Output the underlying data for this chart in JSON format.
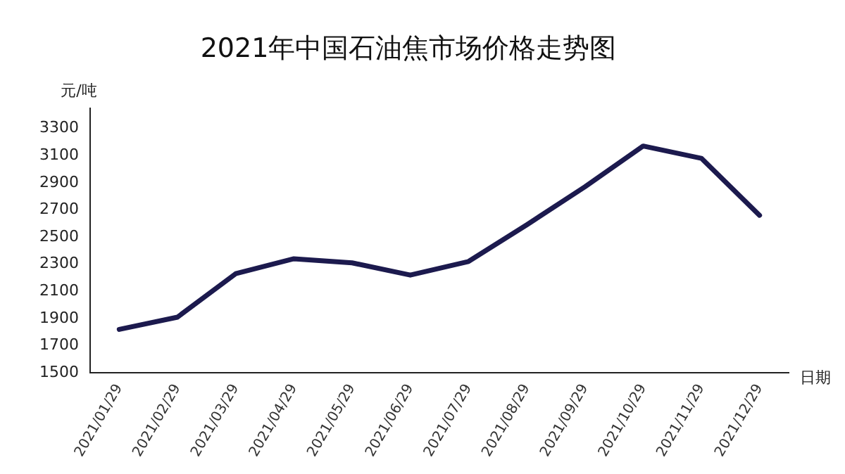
{
  "chart_data": {
    "type": "line",
    "title": "2021年中国石油焦市场价格走势图",
    "xlabel": "日期",
    "ylabel": "元/吨",
    "categories": [
      "2021/01/29",
      "2021/02/29",
      "2021/03/29",
      "2021/04/29",
      "2021/05/29",
      "2021/06/29",
      "2021/07/29",
      "2021/08/29",
      "2021/09/29",
      "2021/10/29",
      "2021/11/29",
      "2021/12/29"
    ],
    "series": [
      {
        "color": "#1c1a4e",
        "values": [
          1820,
          1910,
          2230,
          2340,
          2310,
          2220,
          2320,
          2590,
          2870,
          3170,
          3080,
          2660
        ]
      }
    ],
    "ylim": [
      1500,
      3450
    ],
    "yticks": [
      1500,
      1700,
      1900,
      2100,
      2300,
      2500,
      2700,
      2900,
      3100,
      3300
    ],
    "grid": false,
    "legend": false,
    "marker": "none",
    "line_style": "solid"
  }
}
